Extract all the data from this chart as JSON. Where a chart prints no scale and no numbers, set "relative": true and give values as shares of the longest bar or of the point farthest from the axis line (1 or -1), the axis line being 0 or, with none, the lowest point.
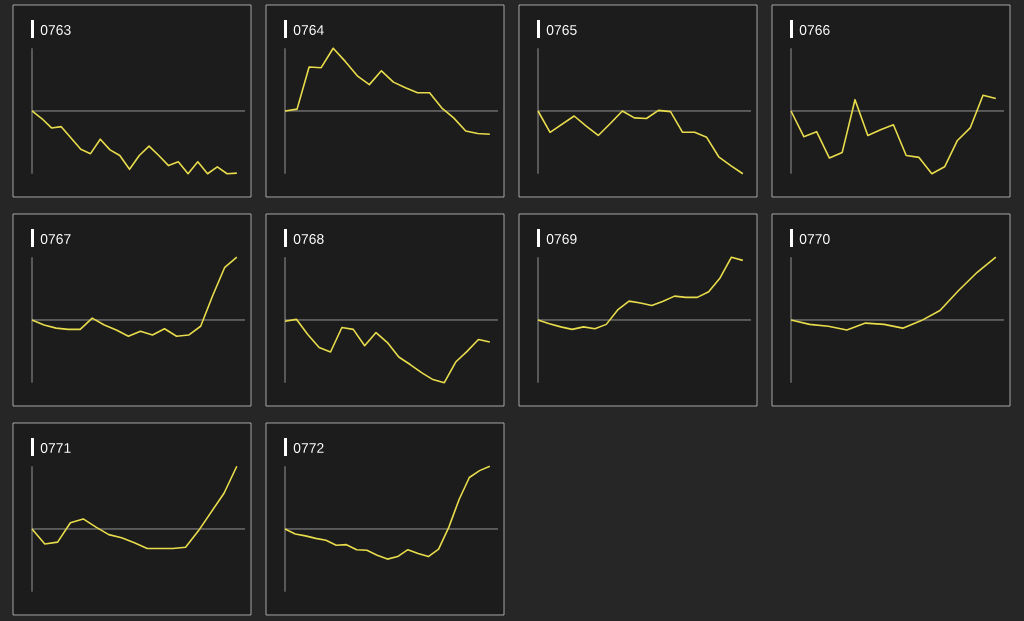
{
  "chart_data": [
    {
      "type": "line",
      "title": "0763",
      "relative": true,
      "color": "#e8dc4c",
      "categories": [
        null,
        null,
        null,
        null,
        null,
        null,
        null,
        null,
        null,
        null,
        null,
        null,
        null,
        null,
        null,
        null,
        null,
        null,
        null,
        null,
        null,
        null
      ],
      "values": [
        0,
        -0.12,
        -0.27,
        -0.25,
        -0.43,
        -0.61,
        -0.68,
        -0.45,
        -0.62,
        -0.71,
        -0.93,
        -0.71,
        -0.56,
        -0.71,
        -0.87,
        -0.81,
        -1,
        -0.81,
        -1,
        -0.89,
        -1,
        -0.99
      ]
    },
    {
      "type": "line",
      "title": "0764",
      "relative": true,
      "color": "#e8dc4c",
      "categories": [
        null,
        null,
        null,
        null,
        null,
        null,
        null,
        null,
        null,
        null,
        null,
        null,
        null,
        null,
        null,
        null,
        null,
        null
      ],
      "values": [
        0,
        0.03,
        0.7,
        0.69,
        1,
        0.79,
        0.56,
        0.42,
        0.64,
        0.46,
        0.37,
        0.29,
        0.29,
        0.05,
        -0.11,
        -0.32,
        -0.36,
        -0.37
      ]
    },
    {
      "type": "line",
      "title": "0765",
      "relative": true,
      "color": "#e8dc4c",
      "categories": [
        null,
        null,
        null,
        null,
        null,
        null,
        null,
        null,
        null,
        null,
        null,
        null,
        null,
        null,
        null,
        null,
        null,
        null
      ],
      "values": [
        0,
        -0.34,
        -0.21,
        -0.08,
        -0.24,
        -0.39,
        -0.2,
        0,
        -0.11,
        -0.12,
        0.01,
        -0.01,
        -0.34,
        -0.34,
        -0.42,
        -0.73,
        -0.87,
        -1
      ]
    },
    {
      "type": "line",
      "title": "0766",
      "relative": true,
      "color": "#e8dc4c",
      "categories": [
        null,
        null,
        null,
        null,
        null,
        null,
        null,
        null,
        null,
        null,
        null,
        null,
        null,
        null,
        null,
        null,
        null
      ],
      "values": [
        0,
        -0.41,
        -0.33,
        -0.75,
        -0.66,
        0.18,
        -0.39,
        -0.3,
        -0.22,
        -0.71,
        -0.74,
        -1,
        -0.89,
        -0.47,
        -0.27,
        0.25,
        0.2
      ]
    },
    {
      "type": "line",
      "title": "0767",
      "relative": true,
      "color": "#e8dc4c",
      "categories": [
        null,
        null,
        null,
        null,
        null,
        null,
        null,
        null,
        null,
        null,
        null,
        null,
        null,
        null,
        null,
        null,
        null,
        null
      ],
      "values": [
        0,
        -0.08,
        -0.13,
        -0.15,
        -0.15,
        0.03,
        -0.08,
        -0.16,
        -0.26,
        -0.18,
        -0.24,
        -0.14,
        -0.26,
        -0.24,
        -0.1,
        0.39,
        0.84,
        1
      ]
    },
    {
      "type": "line",
      "title": "0768",
      "relative": true,
      "color": "#e8dc4c",
      "categories": [
        null,
        null,
        null,
        null,
        null,
        null,
        null,
        null,
        null,
        null,
        null,
        null,
        null,
        null,
        null,
        null,
        null,
        null,
        null
      ],
      "values": [
        -0.02,
        0.01,
        -0.23,
        -0.44,
        -0.51,
        -0.12,
        -0.15,
        -0.41,
        -0.2,
        -0.36,
        -0.59,
        -0.71,
        -0.84,
        -0.95,
        -1,
        -0.67,
        -0.5,
        -0.31,
        -0.35
      ]
    },
    {
      "type": "line",
      "title": "0769",
      "relative": true,
      "color": "#e8dc4c",
      "categories": [
        null,
        null,
        null,
        null,
        null,
        null,
        null,
        null,
        null,
        null,
        null,
        null,
        null,
        null,
        null,
        null,
        null,
        null,
        null
      ],
      "values": [
        0,
        -0.06,
        -0.11,
        -0.15,
        -0.11,
        -0.14,
        -0.07,
        0.16,
        0.3,
        0.27,
        0.23,
        0.3,
        0.38,
        0.36,
        0.36,
        0.45,
        0.67,
        1,
        0.95
      ]
    },
    {
      "type": "line",
      "title": "0770",
      "relative": true,
      "color": "#e8dc4c",
      "categories": [
        null,
        null,
        null,
        null,
        null,
        null,
        null,
        null,
        null,
        null,
        null,
        null
      ],
      "values": [
        0,
        -0.07,
        -0.1,
        -0.16,
        -0.05,
        -0.07,
        -0.13,
        -0.01,
        0.15,
        0.47,
        0.76,
        1
      ]
    },
    {
      "type": "line",
      "title": "0771",
      "relative": true,
      "color": "#e8dc4c",
      "categories": [
        null,
        null,
        null,
        null,
        null,
        null,
        null,
        null,
        null,
        null,
        null,
        null,
        null,
        null,
        null,
        null,
        null
      ],
      "values": [
        0,
        -0.24,
        -0.21,
        0.1,
        0.16,
        0.03,
        -0.09,
        -0.14,
        -0.22,
        -0.31,
        -0.31,
        -0.31,
        -0.29,
        -0.03,
        0.27,
        0.57,
        1
      ]
    },
    {
      "type": "line",
      "title": "0772",
      "relative": true,
      "color": "#e8dc4c",
      "categories": [
        null,
        null,
        null,
        null,
        null,
        null,
        null,
        null,
        null,
        null,
        null,
        null,
        null,
        null,
        null,
        null,
        null,
        null,
        null,
        null,
        null
      ],
      "values": [
        0,
        -0.08,
        -0.11,
        -0.15,
        -0.18,
        -0.26,
        -0.25,
        -0.33,
        -0.34,
        -0.42,
        -0.48,
        -0.44,
        -0.33,
        -0.39,
        -0.44,
        -0.32,
        0.03,
        0.47,
        0.82,
        0.93,
        1
      ]
    }
  ]
}
